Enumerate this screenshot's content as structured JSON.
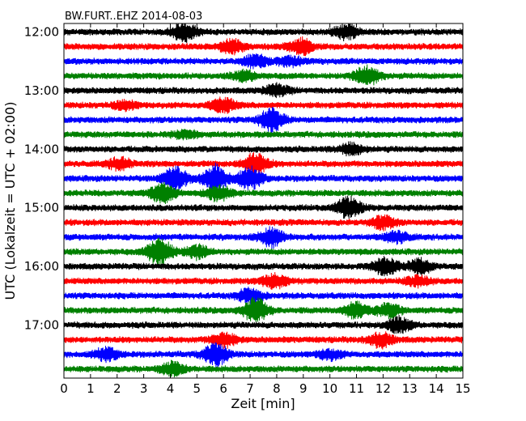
{
  "chart_data": {
    "type": "line",
    "title": "BW.FURT..EHZ 2014-08-03",
    "xlabel": "Zeit  [min]",
    "ylabel": "UTC (Lokalzeit = UTC + 02:00)",
    "xlim": [
      0,
      15
    ],
    "x_ticks": [
      0,
      1,
      2,
      3,
      4,
      5,
      6,
      7,
      8,
      9,
      10,
      11,
      12,
      13,
      14,
      15
    ],
    "y_tick_labels": [
      "12:00",
      "13:00",
      "14:00",
      "15:00",
      "16:00",
      "17:00"
    ],
    "trace_interval_min": 15,
    "start_time": "12:00",
    "trace_color_cycle": [
      "#000000",
      "#ff0000",
      "#0000ff",
      "#008000"
    ],
    "traces": [
      {
        "start": "12:00",
        "events": [
          {
            "t": 4.5,
            "amp": 0.55
          },
          {
            "t": 10.6,
            "amp": 0.45
          }
        ]
      },
      {
        "start": "12:15",
        "events": [
          {
            "t": 6.3,
            "amp": 0.4
          },
          {
            "t": 8.9,
            "amp": 0.5
          }
        ]
      },
      {
        "start": "12:30",
        "events": [
          {
            "t": 7.2,
            "amp": 0.4
          },
          {
            "t": 8.5,
            "amp": 0.3
          }
        ]
      },
      {
        "start": "12:45",
        "events": [
          {
            "t": 11.4,
            "amp": 0.6
          },
          {
            "t": 6.8,
            "amp": 0.3
          }
        ]
      },
      {
        "start": "13:00",
        "events": [
          {
            "t": 8.0,
            "amp": 0.35
          }
        ]
      },
      {
        "start": "13:15",
        "events": [
          {
            "t": 6.0,
            "amp": 0.45
          },
          {
            "t": 2.3,
            "amp": 0.25
          }
        ]
      },
      {
        "start": "13:30",
        "events": [
          {
            "t": 7.8,
            "amp": 0.7
          }
        ]
      },
      {
        "start": "13:45",
        "events": [
          {
            "t": 4.6,
            "amp": 0.25
          }
        ]
      },
      {
        "start": "14:00",
        "events": [
          {
            "t": 10.8,
            "amp": 0.35
          }
        ]
      },
      {
        "start": "14:15",
        "events": [
          {
            "t": 7.2,
            "amp": 0.7
          },
          {
            "t": 2.1,
            "amp": 0.35
          }
        ]
      },
      {
        "start": "14:30",
        "events": [
          {
            "t": 4.2,
            "amp": 0.7
          },
          {
            "t": 5.7,
            "amp": 0.85
          },
          {
            "t": 7.0,
            "amp": 0.7
          }
        ]
      },
      {
        "start": "14:45",
        "events": [
          {
            "t": 3.7,
            "amp": 0.6
          },
          {
            "t": 5.8,
            "amp": 0.5
          }
        ]
      },
      {
        "start": "15:00",
        "events": [
          {
            "t": 10.7,
            "amp": 0.65
          }
        ]
      },
      {
        "start": "15:15",
        "events": [
          {
            "t": 12.0,
            "amp": 0.4
          }
        ]
      },
      {
        "start": "15:30",
        "events": [
          {
            "t": 7.8,
            "amp": 0.6
          },
          {
            "t": 12.5,
            "amp": 0.35
          }
        ]
      },
      {
        "start": "15:45",
        "events": [
          {
            "t": 3.6,
            "amp": 0.9
          },
          {
            "t": 5.0,
            "amp": 0.4
          }
        ]
      },
      {
        "start": "16:00",
        "events": [
          {
            "t": 12.1,
            "amp": 0.55
          },
          {
            "t": 13.4,
            "amp": 0.45
          }
        ]
      },
      {
        "start": "16:15",
        "events": [
          {
            "t": 7.9,
            "amp": 0.45
          },
          {
            "t": 13.3,
            "amp": 0.3
          }
        ]
      },
      {
        "start": "16:30",
        "events": [
          {
            "t": 7.0,
            "amp": 0.45
          }
        ]
      },
      {
        "start": "16:45",
        "events": [
          {
            "t": 7.2,
            "amp": 0.75
          },
          {
            "t": 11.0,
            "amp": 0.5
          },
          {
            "t": 12.2,
            "amp": 0.4
          }
        ]
      },
      {
        "start": "17:00",
        "events": [
          {
            "t": 12.6,
            "amp": 0.45
          }
        ]
      },
      {
        "start": "17:15",
        "events": [
          {
            "t": 6.0,
            "amp": 0.45
          },
          {
            "t": 11.9,
            "amp": 0.45
          }
        ]
      },
      {
        "start": "17:30",
        "events": [
          {
            "t": 5.7,
            "amp": 0.7
          },
          {
            "t": 1.6,
            "amp": 0.4
          },
          {
            "t": 10.0,
            "amp": 0.3
          }
        ]
      },
      {
        "start": "17:45",
        "events": [
          {
            "t": 4.1,
            "amp": 0.4
          }
        ]
      }
    ]
  }
}
